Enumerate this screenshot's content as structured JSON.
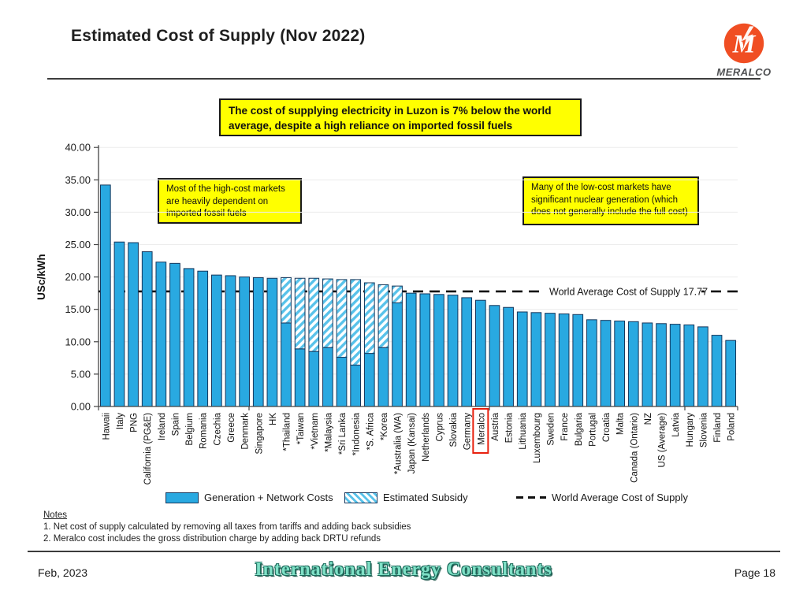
{
  "header": {
    "title": "Estimated Cost of Supply (Nov 2022)",
    "logo_brand": "MERALCO"
  },
  "banner_text": "The cost of supplying electricity in Luzon is 7% below the world average, despite a high reliance on imported fossil fuels",
  "callouts": {
    "left": "Most of the high-cost markets are heavily dependent on imported fossil fuels",
    "right": "Many of the low-cost markets have significant nuclear generation (which does not generally include the full cost)"
  },
  "chart_data": {
    "type": "bar",
    "stacked": true,
    "title": "Estimated Cost of Supply (Nov 2022)",
    "xlabel": "",
    "ylabel": "USc/kWh",
    "ylim": [
      0,
      40
    ],
    "ytick_step": 5,
    "grid": "faint horizontal every 5",
    "legend_position": "bottom",
    "world_average": {
      "value": 17.77,
      "label_on_chart": "World Average Cost of Supply 17.77",
      "legend_label": "World Average Cost of Supply"
    },
    "highlight_category": "Meralco",
    "categories": [
      "Hawaii",
      "Italy",
      "PNG",
      "California (PG&E)",
      "Ireland",
      "Spain",
      "Belgium",
      "Romania",
      "Czechia",
      "Greece",
      "Denmark",
      "Singapore",
      "HK",
      "*Thailand",
      "*Taiwan",
      "*Vietnam",
      "*Malaysia",
      "*Sri Lanka",
      "*Indonesia",
      "*S. Africa",
      "*Korea",
      "*Australia (WA)",
      "Japan (Kansai)",
      "Netherlands",
      "Cyprus",
      "Slovakia",
      "Germany",
      "Meralco",
      "Austria",
      "Estonia",
      "Lithuania",
      "Luxembourg",
      "Sweden",
      "France",
      "Bulgaria",
      "Portugal",
      "Croatia",
      "Malta",
      "Canada (Ontario)",
      "NZ",
      "US (Average)",
      "Latvia",
      "Hungary",
      "Slovenia",
      "Finland",
      "Poland"
    ],
    "series": [
      {
        "name": "Generation + Network Costs",
        "values": [
          34.2,
          25.4,
          25.3,
          23.9,
          22.3,
          22.1,
          21.3,
          20.9,
          20.3,
          20.2,
          20.0,
          19.9,
          19.8,
          12.9,
          8.9,
          8.5,
          9.1,
          7.6,
          6.4,
          8.2,
          9.1,
          16.0,
          17.5,
          17.4,
          17.3,
          17.2,
          16.8,
          16.4,
          15.6,
          15.3,
          14.6,
          14.5,
          14.4,
          14.3,
          14.2,
          13.4,
          13.3,
          13.2,
          13.1,
          12.9,
          12.8,
          12.7,
          12.6,
          12.3,
          11.0,
          10.2
        ]
      },
      {
        "name": "Estimated Subsidy",
        "values": [
          0,
          0,
          0,
          0,
          0,
          0,
          0,
          0,
          0,
          0,
          0,
          0,
          0,
          7.0,
          10.9,
          11.3,
          10.6,
          12.0,
          13.2,
          10.9,
          9.7,
          2.6,
          0,
          0,
          0,
          0,
          0,
          0,
          0,
          0,
          0,
          0,
          0,
          0,
          0,
          0,
          0,
          0,
          0,
          0,
          0,
          0,
          0,
          0,
          0,
          0
        ]
      }
    ],
    "colors": {
      "bar_fill": "#29a9e1",
      "bar_stroke": "#15365b",
      "hatch_stripe": "#58c2ea",
      "average_line": "#141414",
      "highlight_box": "#e8210f",
      "gridline": "#ececec",
      "axis": "#444444"
    }
  },
  "legend": {
    "solid_label": "Generation + Network Costs",
    "hatch_label": "Estimated Subsidy",
    "dash_label": "World Average Cost of Supply"
  },
  "notes": {
    "heading": "Notes",
    "items": [
      "1. Net cost of supply calculated by removing all taxes from tariffs and adding back subsidies",
      "2. Meralco cost includes the gross distribution charge by adding back DRTU refunds"
    ]
  },
  "footer": {
    "date": "Feb, 2023",
    "company": "International Energy Consultants",
    "page": "Page 18"
  }
}
